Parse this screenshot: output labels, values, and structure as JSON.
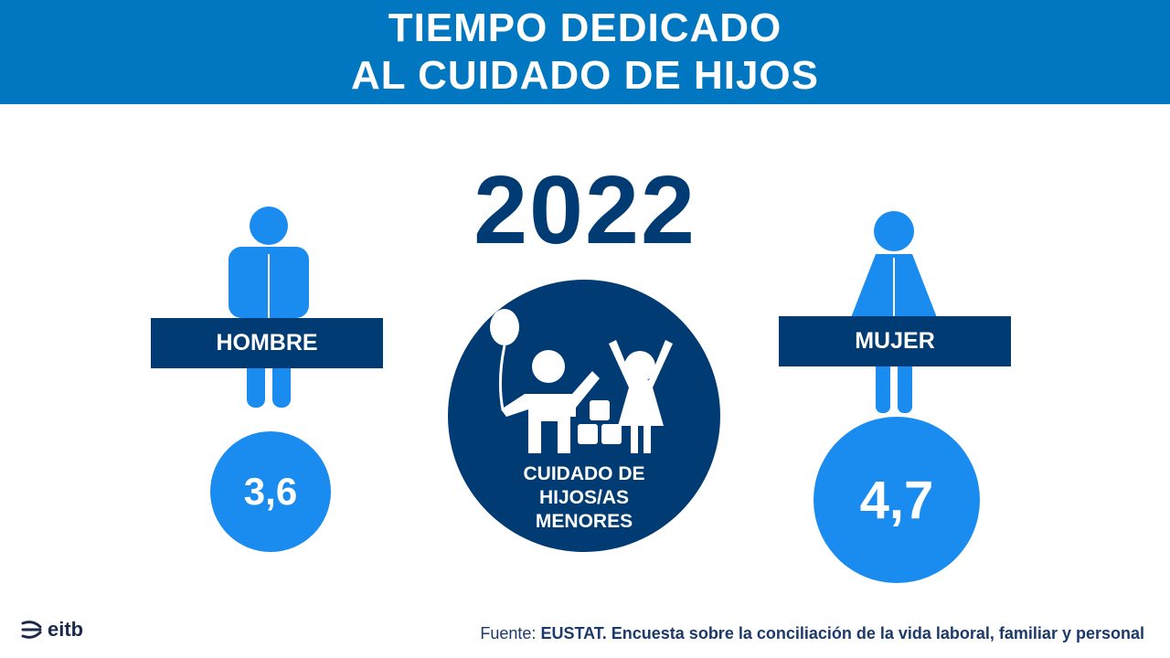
{
  "header": {
    "title_line1": "TIEMPO DEDICADO",
    "title_line2": "AL CUIDADO DE HIJOS"
  },
  "year": "2022",
  "men": {
    "label": "HOMBRE",
    "value": "3,6",
    "icon": "man-icon"
  },
  "women": {
    "label": "MUJER",
    "value": "4,7",
    "icon": "woman-icon"
  },
  "center": {
    "icon": "children-playing-icon",
    "line1": "CUIDADO DE",
    "line2": "HIJOS/AS",
    "line3": "MENORES"
  },
  "footer": {
    "logo_text": "eitb",
    "source_prefix": "Fuente: ",
    "source_text": "EUSTAT. Encuesta sobre la conciliación de la vida laboral, familiar y personal"
  },
  "colors": {
    "header_blue": "#0077c0",
    "navy": "#003b73",
    "light_blue": "#1a8cf0"
  }
}
